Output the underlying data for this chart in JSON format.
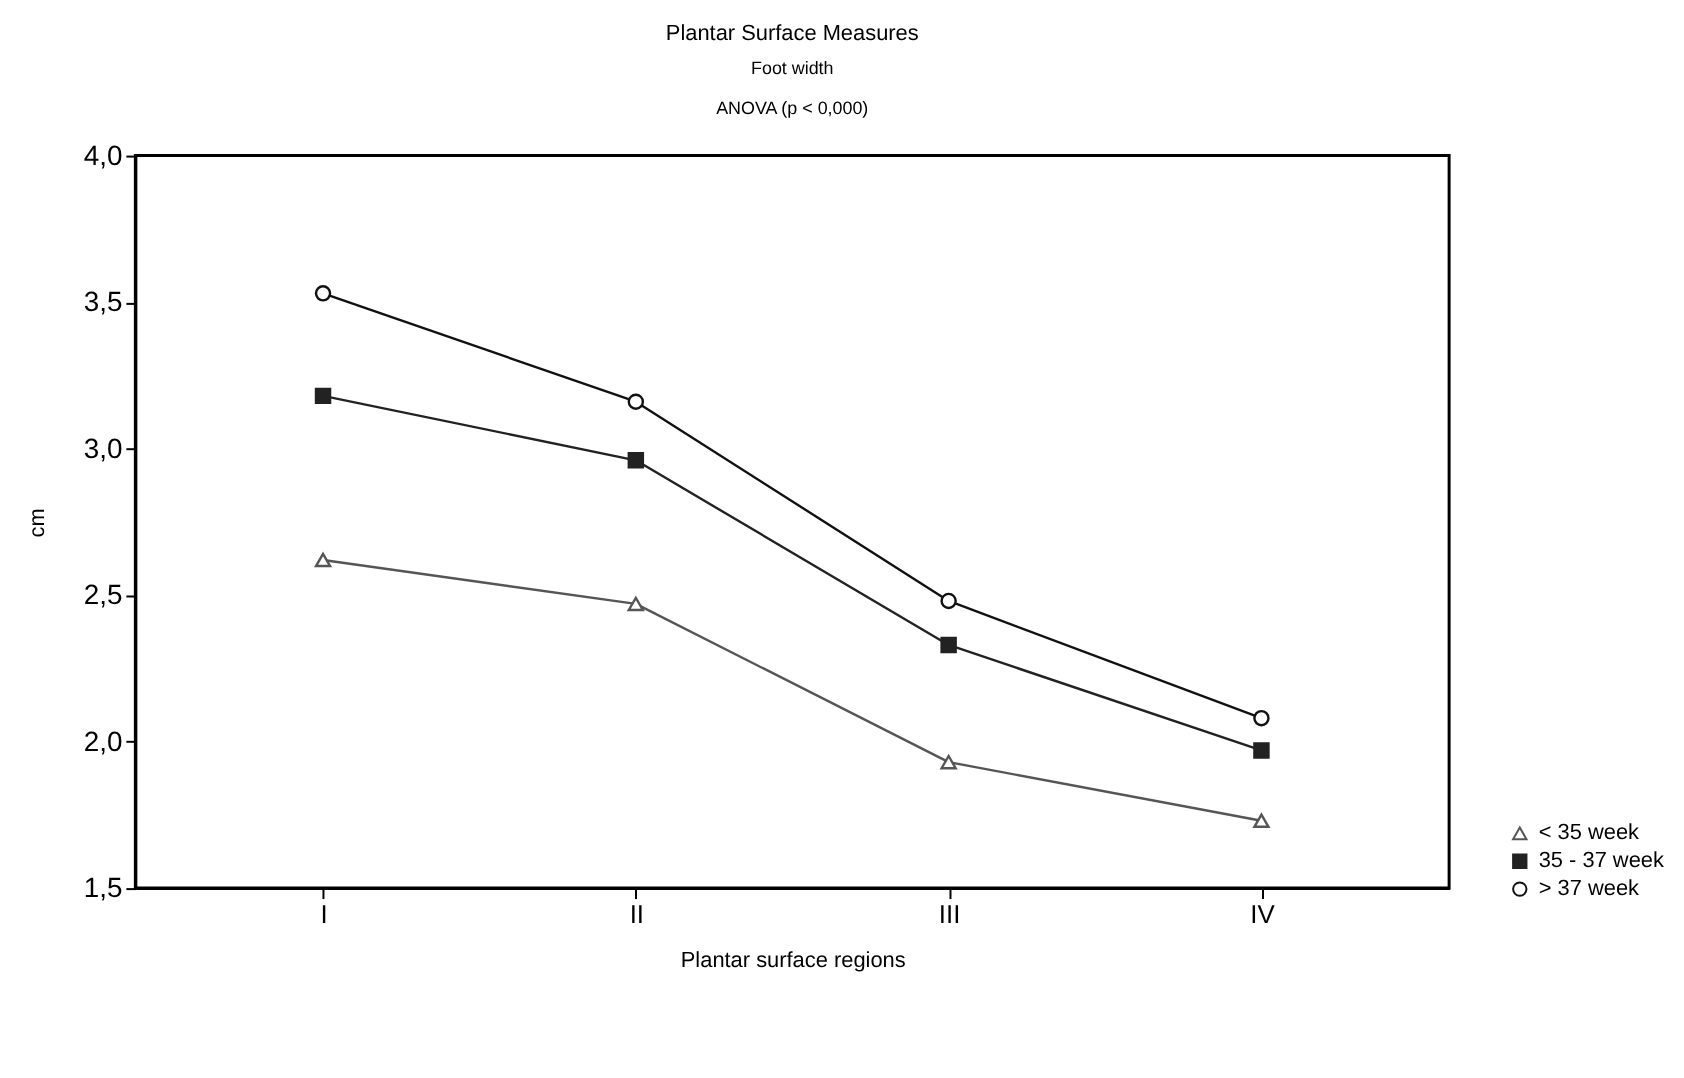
{
  "chart_data": {
    "type": "line",
    "title": "Plantar Surface Measures",
    "subtitle": "Foot width",
    "annotations": [
      "ANOVA (p < 0,000)"
    ],
    "xlabel": "Plantar surface regions",
    "ylabel": "cm",
    "categories": [
      "I",
      "II",
      "III",
      "IV"
    ],
    "series": [
      {
        "name": "< 35 week",
        "color": "#555555",
        "marker": "triangle",
        "values": [
          2.62,
          2.47,
          1.93,
          1.73
        ]
      },
      {
        "name": "35 - 37 week",
        "color": "#222222",
        "marker": "square",
        "values": [
          3.18,
          2.96,
          2.33,
          1.97
        ]
      },
      {
        "name": "> 37 week",
        "color": "#111111",
        "marker": "circle",
        "values": [
          3.53,
          3.16,
          2.48,
          2.08
        ]
      }
    ],
    "ylim": [
      1.5,
      4.0
    ],
    "yticks": [
      {
        "value": 1.5,
        "label": "1,5"
      },
      {
        "value": 2.0,
        "label": "2,0"
      },
      {
        "value": 2.5,
        "label": "2,5"
      },
      {
        "value": 3.0,
        "label": "3,0"
      },
      {
        "value": 3.5,
        "label": "3,5"
      },
      {
        "value": 4.0,
        "label": "4,0"
      }
    ],
    "grid": false,
    "legend": "bottom right",
    "line_style": "solid"
  }
}
